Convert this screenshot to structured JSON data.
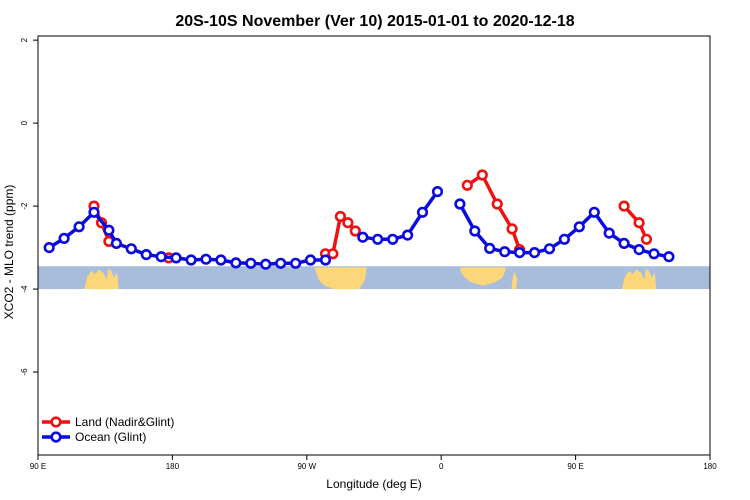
{
  "chart_data": {
    "type": "line",
    "title": "20S-10S November (Ver 10)   2015-01-01 to 2020-12-18",
    "xlabel": "Longitude (deg E)",
    "ylabel": "XCO2 - MLO trend (ppm)",
    "xlim": [
      90,
      540
    ],
    "ylim": [
      -8,
      2.1
    ],
    "x_ticks": [
      {
        "value": 90,
        "label": "90 E"
      },
      {
        "value": 180,
        "label": "180"
      },
      {
        "value": 270,
        "label": "90 W"
      },
      {
        "value": 360,
        "label": "0"
      },
      {
        "value": 450,
        "label": "90 E"
      },
      {
        "value": 540,
        "label": "180"
      }
    ],
    "y_ticks": [
      {
        "value": 2,
        "label": "2"
      },
      {
        "value": 0,
        "label": "0"
      },
      {
        "value": -2,
        "label": "-2"
      },
      {
        "value": -4,
        "label": "-4"
      },
      {
        "value": -6,
        "label": "-6"
      }
    ],
    "grid": false,
    "legend_position": "bottom-left",
    "map_strip": {
      "y_top": -3.45,
      "y_bottom": -4.0,
      "ocean_color": "#a8bcdc",
      "land_color": "#fcd77a"
    },
    "series": [
      {
        "name": "Land (Nadir&Glint)",
        "color": "#ee1111",
        "points": [
          [
            127.5,
            -2.0
          ],
          [
            132.5,
            -2.4
          ],
          [
            137.5,
            -2.85
          ],
          [
            177.5,
            -3.25
          ],
          [
            282.5,
            -3.15
          ],
          [
            287.5,
            -3.15
          ],
          [
            292.5,
            -2.25
          ],
          [
            297.5,
            -2.4
          ],
          [
            302.5,
            -2.6
          ],
          [
            377.5,
            -1.5
          ],
          [
            387.5,
            -1.25
          ],
          [
            397.5,
            -1.95
          ],
          [
            407.5,
            -2.55
          ],
          [
            412.5,
            -3.05
          ],
          [
            482.5,
            -2.0
          ],
          [
            492.5,
            -2.4
          ],
          [
            497.5,
            -2.8
          ]
        ]
      },
      {
        "name": "Ocean (Glint)",
        "color": "#0a0ae0",
        "points": [
          [
            97.5,
            -3.0
          ],
          [
            107.5,
            -2.78
          ],
          [
            117.5,
            -2.5
          ],
          [
            127.5,
            -2.15
          ],
          [
            137.5,
            -2.58
          ],
          [
            142.5,
            -2.9
          ],
          [
            152.5,
            -3.03
          ],
          [
            162.5,
            -3.17
          ],
          [
            172.5,
            -3.22
          ],
          [
            182.5,
            -3.25
          ],
          [
            192.5,
            -3.3
          ],
          [
            202.5,
            -3.28
          ],
          [
            212.5,
            -3.3
          ],
          [
            222.5,
            -3.37
          ],
          [
            232.5,
            -3.38
          ],
          [
            242.5,
            -3.4
          ],
          [
            252.5,
            -3.38
          ],
          [
            262.5,
            -3.38
          ],
          [
            272.5,
            -3.3
          ],
          [
            282.5,
            -3.3
          ],
          [
            307.5,
            -2.75
          ],
          [
            317.5,
            -2.8
          ],
          [
            327.5,
            -2.8
          ],
          [
            337.5,
            -2.7
          ],
          [
            347.5,
            -2.15
          ],
          [
            357.5,
            -1.65
          ],
          [
            372.5,
            -1.95
          ],
          [
            382.5,
            -2.6
          ],
          [
            392.5,
            -3.02
          ],
          [
            402.5,
            -3.1
          ],
          [
            412.5,
            -3.12
          ],
          [
            422.5,
            -3.12
          ],
          [
            432.5,
            -3.03
          ],
          [
            442.5,
            -2.8
          ],
          [
            452.5,
            -2.5
          ],
          [
            462.5,
            -2.15
          ],
          [
            472.5,
            -2.65
          ],
          [
            482.5,
            -2.9
          ],
          [
            492.5,
            -3.05
          ],
          [
            502.5,
            -3.15
          ],
          [
            512.5,
            -3.22
          ]
        ]
      }
    ]
  }
}
